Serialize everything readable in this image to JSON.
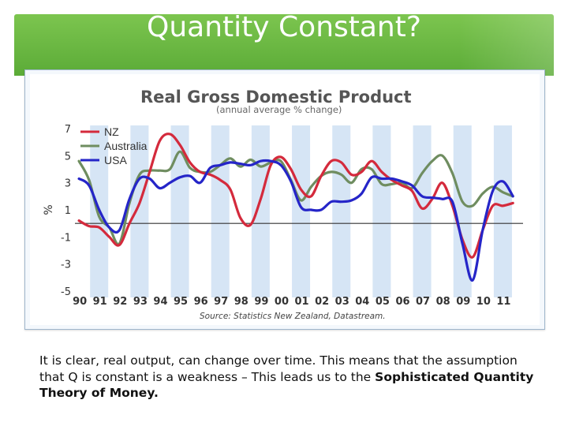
{
  "slide": {
    "title": "Quantity Constant?",
    "caption_plain": "It is clear, real output, can change over time. This means that the assumption that Q is constant is a weakness – This leads us to the ",
    "caption_bold": "Sophisticated Quantity Theory of Money."
  },
  "colors": {
    "header_green": "#6ab942",
    "nz": "#d42a3c",
    "australia": "#6f8d60",
    "usa": "#2525c8",
    "band": "#c8dcf2"
  },
  "chart_data": {
    "type": "line",
    "title": "Real Gross Domestic Product",
    "subtitle": "(annual average % change)",
    "ylabel": "%",
    "xlabel": "",
    "source": "Source: Statistics New Zealand, Datastream.",
    "ylim": [
      -5,
      7
    ],
    "yticks": [
      "7",
      "5",
      "3",
      "1",
      "-1",
      "-3",
      "-5"
    ],
    "xticks": [
      "90",
      "91",
      "92",
      "93",
      "94",
      "95",
      "96",
      "97",
      "98",
      "99",
      "00",
      "01",
      "02",
      "03",
      "04",
      "05",
      "06",
      "07",
      "08",
      "09",
      "10",
      "11"
    ],
    "legend_position": "top-left",
    "x": [
      1990.0,
      1990.5,
      1991.0,
      1991.5,
      1992.0,
      1992.5,
      1993.0,
      1993.5,
      1994.0,
      1994.5,
      1995.0,
      1995.5,
      1996.0,
      1996.5,
      1997.0,
      1997.5,
      1998.0,
      1998.5,
      1999.0,
      1999.5,
      2000.0,
      2000.5,
      2001.0,
      2001.5,
      2002.0,
      2002.5,
      2003.0,
      2003.5,
      2004.0,
      2004.5,
      2005.0,
      2005.5,
      2006.0,
      2006.5,
      2007.0,
      2007.5,
      2008.0,
      2008.5,
      2009.0,
      2009.5,
      2010.0,
      2010.5,
      2011.0,
      2011.5
    ],
    "series": [
      {
        "name": "NZ",
        "values": [
          0.2,
          -0.2,
          -0.3,
          -1.0,
          -1.6,
          0.0,
          1.5,
          3.8,
          6.1,
          6.6,
          5.8,
          4.5,
          3.8,
          3.6,
          3.2,
          2.5,
          0.4,
          -0.1,
          1.8,
          4.3,
          4.9,
          4.0,
          2.5,
          2.0,
          3.5,
          4.6,
          4.5,
          3.6,
          3.8,
          4.6,
          3.8,
          3.2,
          2.8,
          2.4,
          1.1,
          1.8,
          3.0,
          1.3,
          -1.2,
          -2.5,
          -0.5,
          1.3,
          1.3,
          1.5
        ]
      },
      {
        "name": "Australia",
        "values": [
          4.6,
          3.2,
          0.5,
          -0.3,
          -1.5,
          1.5,
          3.6,
          3.9,
          3.9,
          4.0,
          5.3,
          4.1,
          3.8,
          3.8,
          4.3,
          4.8,
          4.2,
          4.7,
          4.2,
          4.5,
          4.6,
          3.2,
          1.7,
          2.7,
          3.5,
          3.8,
          3.6,
          3.0,
          4.0,
          4.0,
          2.9,
          2.9,
          3.0,
          2.6,
          3.7,
          4.6,
          5.0,
          3.7,
          1.6,
          1.3,
          2.2,
          2.7,
          2.3,
          2.0
        ]
      },
      {
        "name": "USA",
        "values": [
          3.3,
          2.8,
          1.0,
          -0.3,
          -0.5,
          1.8,
          3.3,
          3.3,
          2.6,
          3.0,
          3.4,
          3.5,
          3.0,
          4.1,
          4.3,
          4.5,
          4.4,
          4.3,
          4.6,
          4.6,
          4.3,
          3.1,
          1.2,
          1.0,
          1.0,
          1.6,
          1.6,
          1.7,
          2.2,
          3.4,
          3.3,
          3.3,
          3.1,
          2.8,
          2.0,
          1.9,
          1.8,
          1.6,
          -1.5,
          -4.2,
          -0.5,
          2.4,
          3.1,
          2.0
        ]
      }
    ]
  }
}
